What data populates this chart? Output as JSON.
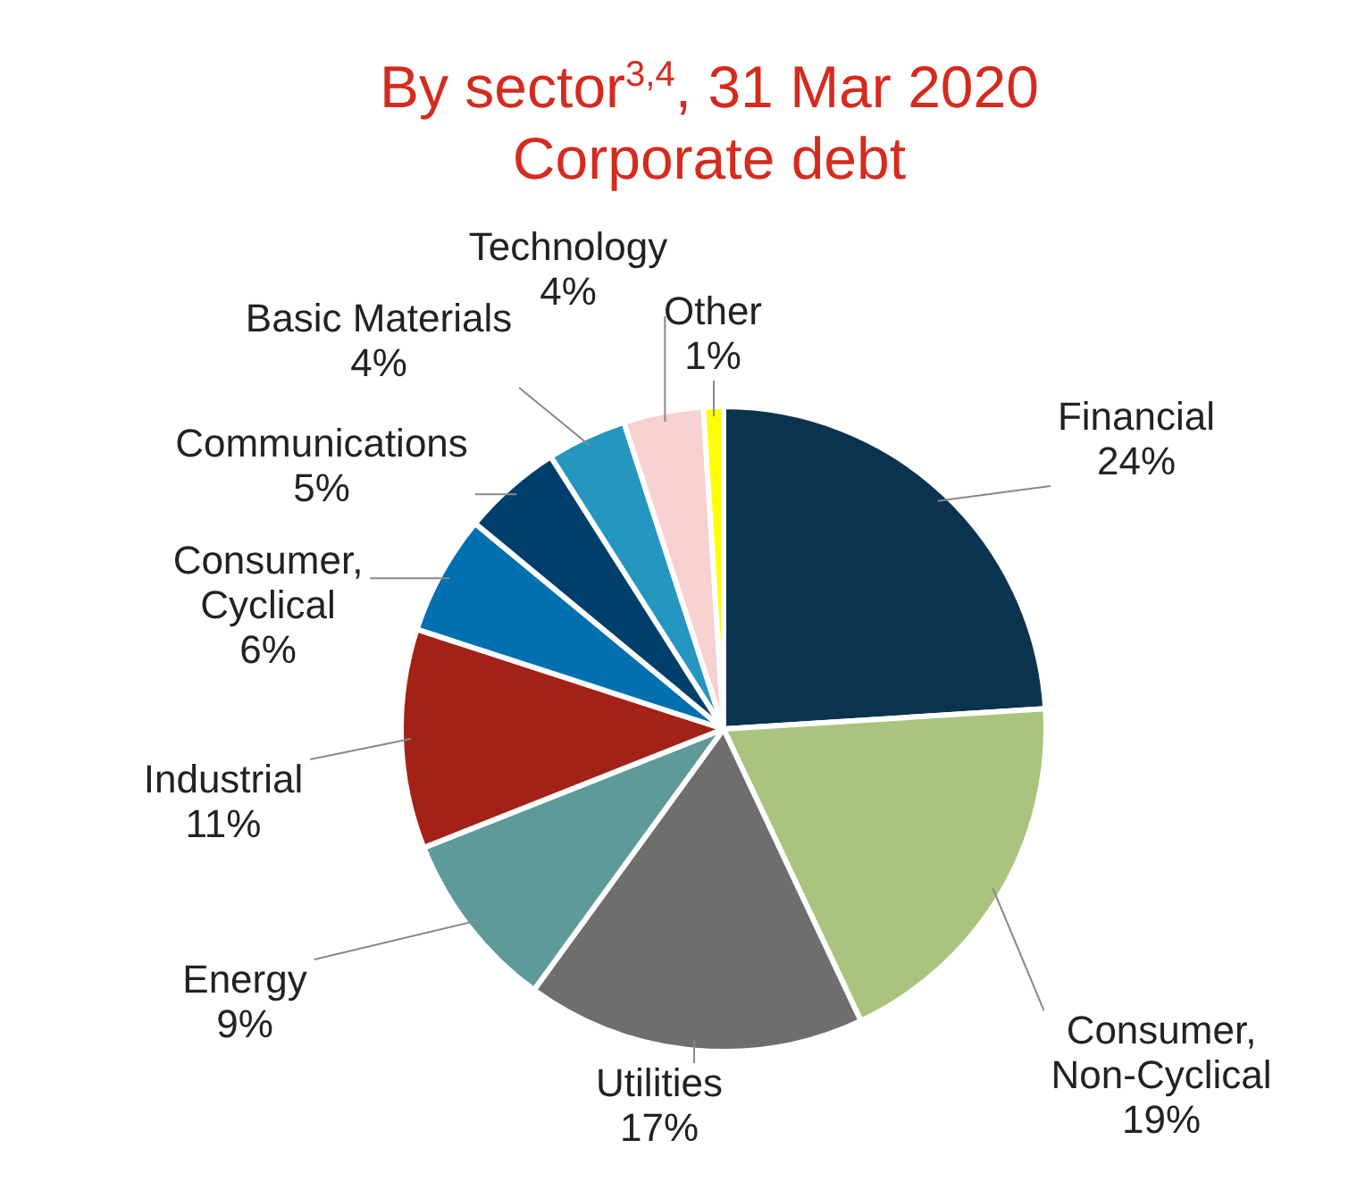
{
  "chart_data": {
    "type": "pie",
    "title": "By sector$^{3,4}$, 31 Mar 2020",
    "subtitle": "Corporate debt",
    "categories": [
      "Financial",
      "Consumer, Non-Cyclical",
      "Utilities",
      "Energy",
      "Industrial",
      "Consumer, Cyclical",
      "Communications",
      "Basic Materials",
      "Technology",
      "Other"
    ],
    "values": [
      24,
      19,
      17,
      9,
      11,
      6,
      5,
      4,
      4,
      1
    ],
    "colors": [
      "#0a3350",
      "#a9c47f",
      "#6e6e6e",
      "#5f9a9a",
      "#a32116",
      "#0070b0",
      "#003f6b",
      "#2596c0",
      "#f7d0d0",
      "#ffff00"
    ],
    "value_labels": [
      "24%",
      "19%",
      "17%",
      "9%",
      "11%",
      "6%",
      "5%",
      "4%",
      "4%",
      "1%"
    ],
    "legend": false
  }
}
